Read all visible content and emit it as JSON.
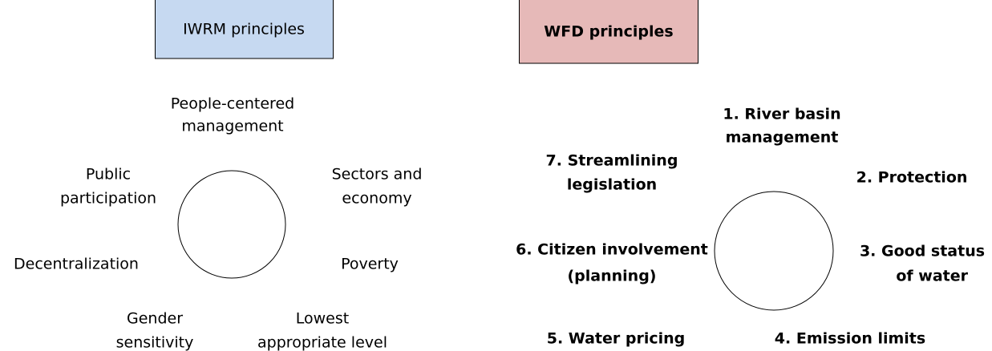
{
  "iwrm": {
    "title": "IWRM principles",
    "principles": [
      [
        "People-centered",
        "management"
      ],
      [
        "Public",
        "participation"
      ],
      [
        "Sectors and",
        "economy"
      ],
      [
        "Decentralization"
      ],
      [
        "Poverty"
      ],
      [
        "Gender",
        "sensitivity"
      ],
      [
        "Lowest",
        "appropriate level"
      ]
    ]
  },
  "wfd": {
    "title": "WFD principles",
    "principles": [
      [
        "1. River basin",
        "management"
      ],
      [
        "7. Streamlining",
        "legislation"
      ],
      [
        "2. Protection"
      ],
      [
        "6. Citizen involvement",
        "(planning)"
      ],
      [
        "3. Good status",
        "of water"
      ],
      [
        "5. Water pricing"
      ],
      [
        "4. Emission limits"
      ]
    ]
  }
}
